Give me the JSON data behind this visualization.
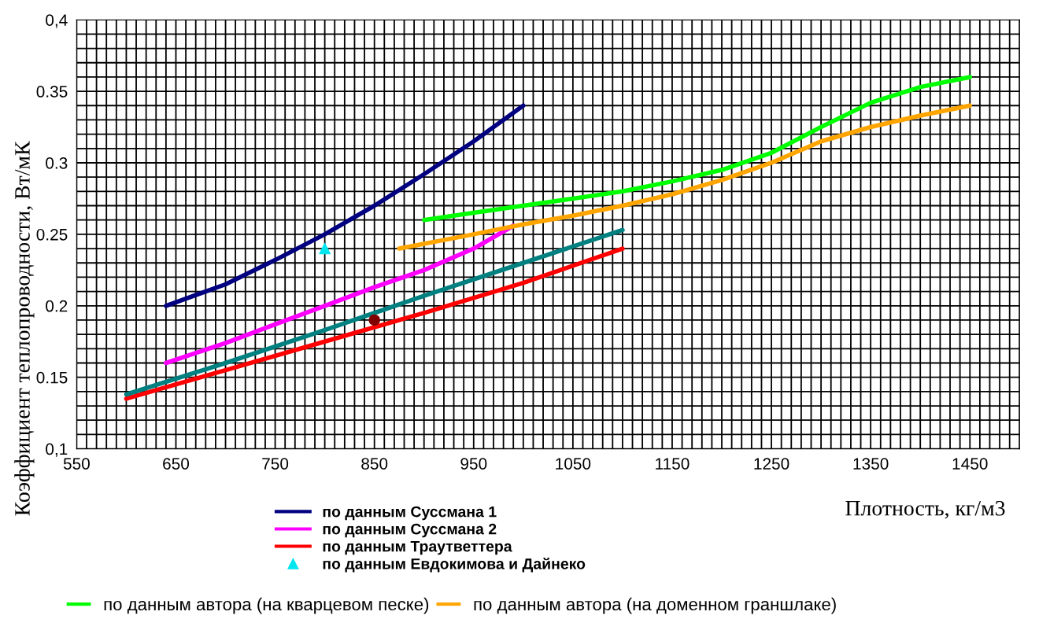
{
  "chart_data": {
    "type": "line",
    "xlabel": "Плотность, кг/м3",
    "ylabel": "Коэффициент теплопроводности, Вт/мК",
    "xlim": [
      550,
      1500
    ],
    "ylim": [
      0.1,
      0.4
    ],
    "xticks": [
      550,
      {
        "value": 560,
        "label": null
      },
      {
        "value": 570,
        "label": null
      },
      {
        "value": 580,
        "label": null
      },
      {
        "value": 590,
        "label": null
      },
      {
        "value": 600,
        "label": null
      },
      {
        "value": 610,
        "label": null
      },
      {
        "value": 620,
        "label": null
      },
      {
        "value": 630,
        "label": null
      },
      {
        "value": 640,
        "label": null
      },
      650,
      {
        "value": 660,
        "label": null
      },
      {
        "value": 670,
        "label": null
      },
      {
        "value": 680,
        "label": null
      },
      {
        "value": 690,
        "label": null
      },
      {
        "value": 700,
        "label": null
      },
      {
        "value": 710,
        "label": null
      },
      {
        "value": 720,
        "label": null
      },
      {
        "value": 730,
        "label": null
      },
      {
        "value": 740,
        "label": null
      },
      750,
      {
        "value": 760,
        "label": null
      },
      {
        "value": 770,
        "label": null
      },
      {
        "value": 780,
        "label": null
      },
      {
        "value": 790,
        "label": null
      },
      {
        "value": 800,
        "label": null
      },
      {
        "value": 810,
        "label": null
      },
      {
        "value": 820,
        "label": null
      },
      {
        "value": 830,
        "label": null
      },
      {
        "value": 840,
        "label": null
      },
      850,
      {
        "value": 860,
        "label": null
      },
      {
        "value": 870,
        "label": null
      },
      {
        "value": 880,
        "label": null
      },
      {
        "value": 890,
        "label": null
      },
      {
        "value": 900,
        "label": null
      },
      {
        "value": 910,
        "label": null
      },
      {
        "value": 920,
        "label": null
      },
      {
        "value": 930,
        "label": null
      },
      {
        "value": 940,
        "label": null
      },
      950,
      {
        "value": 960,
        "label": null
      },
      {
        "value": 970,
        "label": null
      },
      {
        "value": 980,
        "label": null
      },
      {
        "value": 990,
        "label": null
      },
      {
        "value": 1000,
        "label": null
      },
      {
        "value": 1010,
        "label": null
      },
      {
        "value": 1020,
        "label": null
      },
      {
        "value": 1030,
        "label": null
      },
      {
        "value": 1040,
        "label": null
      },
      1050,
      {
        "value": 1060,
        "label": null
      },
      {
        "value": 1070,
        "label": null
      },
      {
        "value": 1080,
        "label": null
      },
      {
        "value": 1090,
        "label": null
      },
      {
        "value": 1100,
        "label": null
      },
      {
        "value": 1110,
        "label": null
      },
      {
        "value": 1120,
        "label": null
      },
      {
        "value": 1130,
        "label": null
      },
      {
        "value": 1140,
        "label": null
      },
      1150,
      {
        "value": 1160,
        "label": null
      },
      {
        "value": 1170,
        "label": null
      },
      {
        "value": 1180,
        "label": null
      },
      {
        "value": 1190,
        "label": null
      },
      {
        "value": 1200,
        "label": null
      },
      {
        "value": 1210,
        "label": null
      },
      {
        "value": 1220,
        "label": null
      },
      {
        "value": 1230,
        "label": null
      },
      {
        "value": 1240,
        "label": null
      },
      1250,
      {
        "value": 1260,
        "label": null
      },
      {
        "value": 1270,
        "label": null
      },
      {
        "value": 1280,
        "label": null
      },
      {
        "value": 1290,
        "label": null
      },
      {
        "value": 1300,
        "label": null
      },
      {
        "value": 1310,
        "label": null
      },
      {
        "value": 1320,
        "label": null
      },
      {
        "value": 1330,
        "label": null
      },
      {
        "value": 1340,
        "label": null
      },
      1350,
      {
        "value": 1360,
        "label": null
      },
      {
        "value": 1370,
        "label": null
      },
      {
        "value": 1380,
        "label": null
      },
      {
        "value": 1390,
        "label": null
      },
      {
        "value": 1400,
        "label": null
      },
      {
        "value": 1410,
        "label": null
      },
      {
        "value": 1420,
        "label": null
      },
      {
        "value": 1430,
        "label": null
      },
      {
        "value": 1440,
        "label": null
      },
      1450,
      {
        "value": 1460,
        "label": null
      },
      {
        "value": 1470,
        "label": null
      },
      {
        "value": 1480,
        "label": null
      },
      {
        "value": 1490,
        "label": null
      },
      {
        "value": 1500,
        "label": null
      }
    ],
    "yticks": [
      {
        "value": 0.1,
        "label": "0,1"
      },
      {
        "value": 0.11,
        "label": null
      },
      {
        "value": 0.12,
        "label": null
      },
      {
        "value": 0.13,
        "label": null
      },
      {
        "value": 0.14,
        "label": null
      },
      0.15,
      {
        "value": 0.16,
        "label": null
      },
      {
        "value": 0.17,
        "label": null
      },
      {
        "value": 0.18,
        "label": null
      },
      {
        "value": 0.19,
        "label": null
      },
      0.2,
      {
        "value": 0.21,
        "label": null
      },
      {
        "value": 0.22,
        "label": null
      },
      {
        "value": 0.23,
        "label": null
      },
      {
        "value": 0.24,
        "label": null
      },
      0.25,
      {
        "value": 0.26,
        "label": null
      },
      {
        "value": 0.27,
        "label": null
      },
      {
        "value": 0.28,
        "label": null
      },
      {
        "value": 0.29,
        "label": null
      },
      0.3,
      {
        "value": 0.31,
        "label": null
      },
      {
        "value": 0.32,
        "label": null
      },
      {
        "value": 0.33,
        "label": null
      },
      {
        "value": 0.34,
        "label": null
      },
      0.35,
      {
        "value": 0.36,
        "label": null
      },
      {
        "value": 0.37,
        "label": null
      },
      {
        "value": 0.38,
        "label": null
      },
      {
        "value": 0.39,
        "label": null
      },
      {
        "value": 0.4,
        "label": "0,4"
      }
    ],
    "grid": true,
    "legend": "bottom",
    "marker": "none",
    "series": [
      {
        "name": "по данным Суссмана 1",
        "color": "#000080",
        "x": [
          640,
          700,
          750,
          800,
          850,
          900,
          950,
          1000
        ],
        "values": [
          0.2,
          0.215,
          0.232,
          0.25,
          0.27,
          0.292,
          0.315,
          0.34
        ]
      },
      {
        "name": "по данным Суссмана 2",
        "color": "#ff00ff",
        "x": [
          640,
          700,
          750,
          800,
          850,
          900,
          950,
          990
        ],
        "values": [
          0.16,
          0.174,
          0.187,
          0.2,
          0.213,
          0.225,
          0.24,
          0.256
        ]
      },
      {
        "name": "по данным Траутветтера",
        "color": "#ff0000",
        "x": [
          600,
          700,
          800,
          900,
          1000,
          1100
        ],
        "values": [
          0.135,
          0.155,
          0.175,
          0.195,
          0.216,
          0.24
        ]
      },
      {
        "name": "по данным Евдокимова и Дайнеко",
        "type": "scatter",
        "marker": "triangle",
        "color": "#00e5ee",
        "x": [
          800
        ],
        "values": [
          0.24
        ]
      },
      {
        "name": "по данным автора (на кварцевом песке)",
        "color": "#00ff00",
        "x": [
          900,
          950,
          1000,
          1050,
          1100,
          1150,
          1200,
          1250,
          1300,
          1350,
          1400,
          1450
        ],
        "values": [
          0.26,
          0.265,
          0.27,
          0.275,
          0.28,
          0.287,
          0.295,
          0.307,
          0.325,
          0.342,
          0.353,
          0.36
        ]
      },
      {
        "name": "по данным автора (на доменном граншлаке)",
        "color": "#ffa500",
        "x": [
          875,
          950,
          1000,
          1050,
          1100,
          1150,
          1200,
          1250,
          1300,
          1350,
          1400,
          1450
        ],
        "values": [
          0.24,
          0.25,
          0.257,
          0.263,
          0.27,
          0.278,
          0.288,
          0.3,
          0.315,
          0.325,
          0.333,
          0.34
        ]
      },
      {
        "color": "#008080",
        "x": [
          600,
          700,
          800,
          900,
          1000,
          1100
        ],
        "values": [
          0.138,
          0.16,
          0.183,
          0.207,
          0.23,
          0.253
        ]
      },
      {
        "type": "scatter",
        "marker": "circle",
        "color": "#800000",
        "x": [
          850
        ],
        "values": [
          0.19
        ]
      }
    ]
  }
}
